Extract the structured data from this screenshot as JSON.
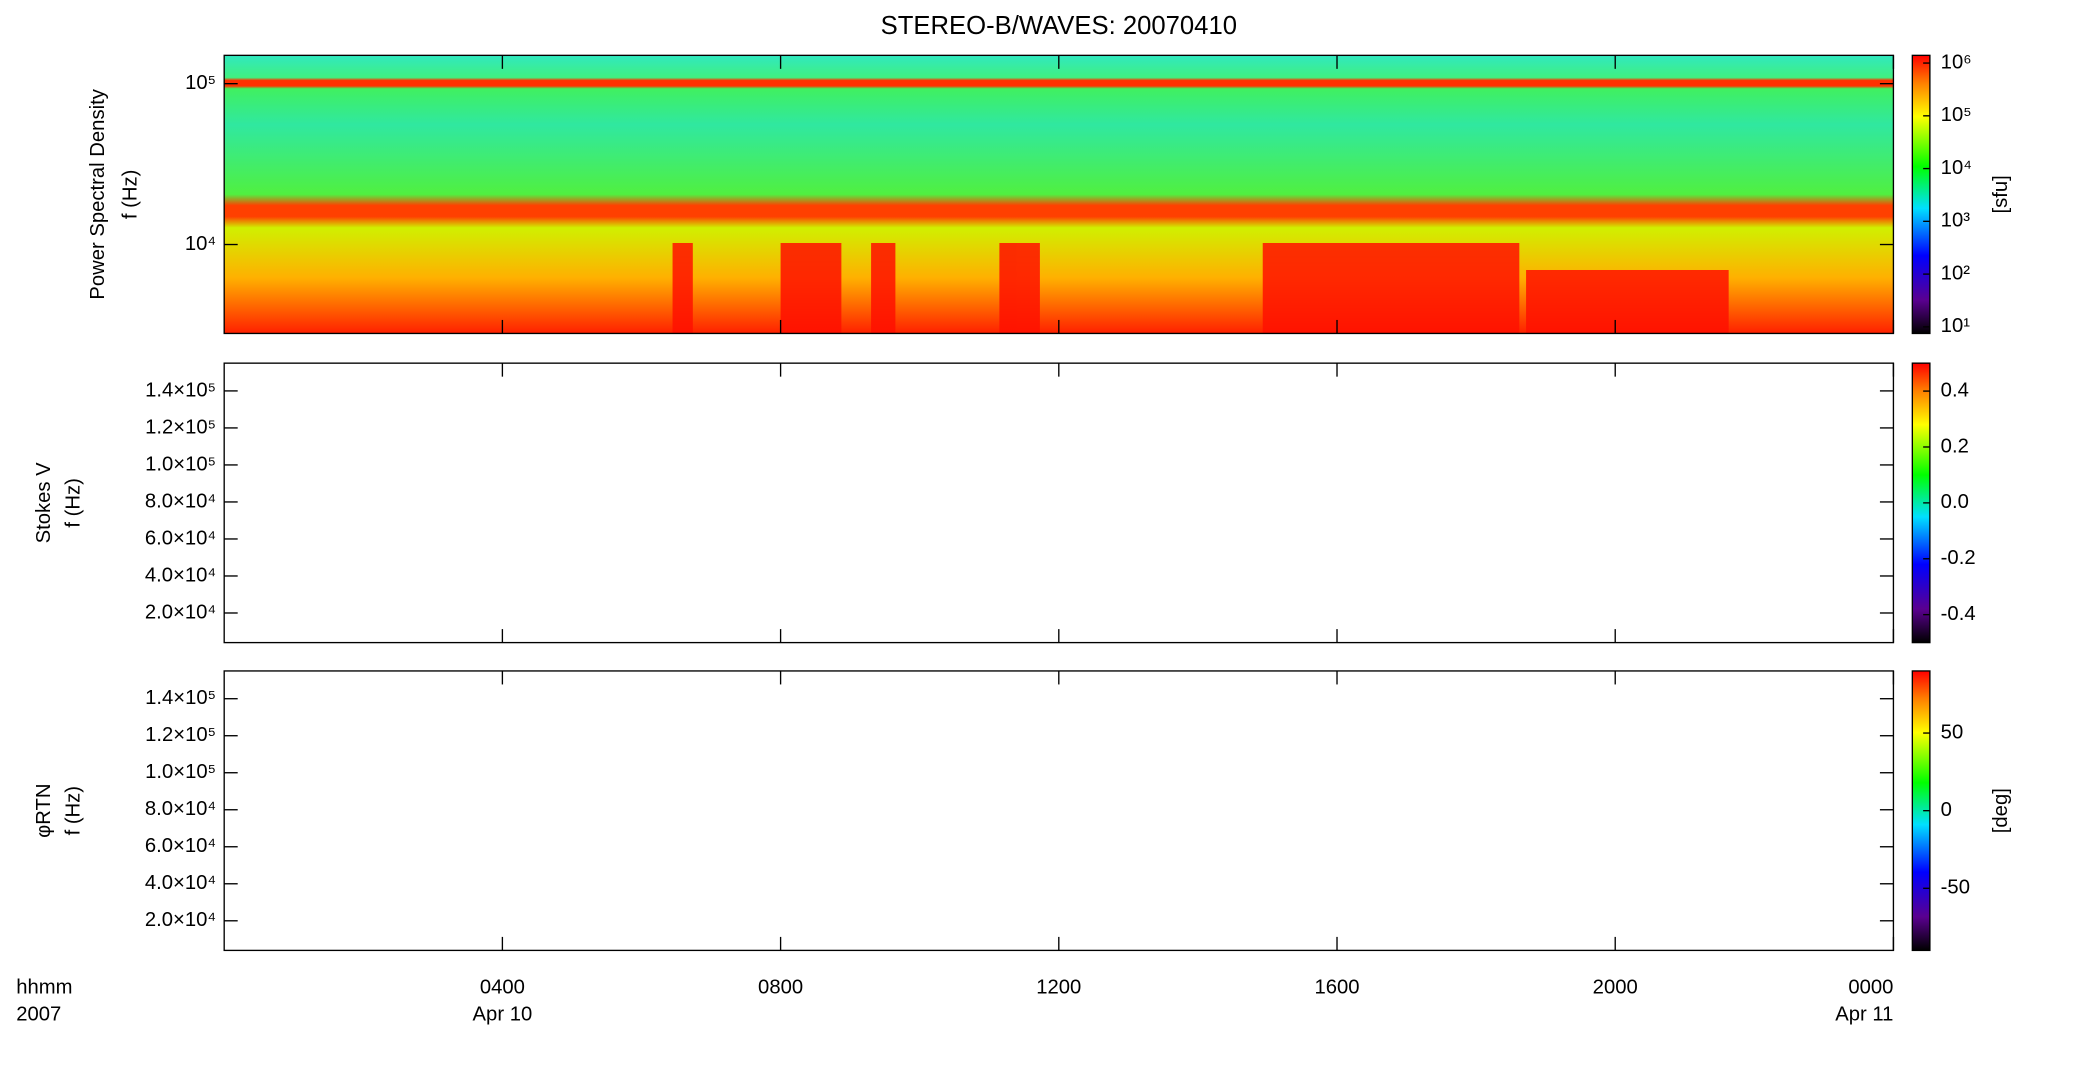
{
  "title": "STEREO-B/WAVES: 20070410",
  "x_axis": {
    "label": "hhmm",
    "label2": "2007",
    "xlim": [
      0,
      24
    ],
    "xticks": [
      {
        "value": 4,
        "label": "0400"
      },
      {
        "value": 8,
        "label": "0800"
      },
      {
        "value": 12,
        "label": "1200"
      },
      {
        "value": 16,
        "label": "1600"
      },
      {
        "value": 20,
        "label": "2000"
      },
      {
        "value": 24,
        "label": "0000"
      }
    ],
    "date_labels": [
      {
        "value": 4,
        "label": "Apr 10"
      },
      {
        "value": 24,
        "label": "Apr 11"
      }
    ]
  },
  "chart_data": [
    {
      "type": "spectrogram",
      "ylabel": "Power Spectral Density",
      "ylabel2": "f (Hz)",
      "log_y": true,
      "ylim": [
        2800,
        150000
      ],
      "yticks": [
        {
          "value": 10000,
          "label": "10⁴"
        },
        {
          "value": 100000,
          "label": "10⁵"
        }
      ],
      "colorbar": {
        "log": true,
        "clim": [
          7.5,
          1400000
        ],
        "label": "[sfu]",
        "ticks": [
          {
            "value": 10,
            "label": "10¹"
          },
          {
            "value": 100,
            "label": "10²"
          },
          {
            "value": 1000,
            "label": "10³"
          },
          {
            "value": 10000,
            "label": "10⁴"
          },
          {
            "value": 100000,
            "label": "10⁵"
          },
          {
            "value": 1000000,
            "label": "10⁶"
          }
        ]
      }
    },
    {
      "type": "spectrogram",
      "ylabel": "Stokes V",
      "ylabel2": "f (Hz)",
      "log_y": false,
      "ylim": [
        4000,
        155000
      ],
      "yticks": [
        {
          "value": 20000,
          "label": "2.0×10⁴"
        },
        {
          "value": 40000,
          "label": "4.0×10⁴"
        },
        {
          "value": 60000,
          "label": "6.0×10⁴"
        },
        {
          "value": 80000,
          "label": "8.0×10⁴"
        },
        {
          "value": 100000,
          "label": "1.0×10⁵"
        },
        {
          "value": 120000,
          "label": "1.2×10⁵"
        },
        {
          "value": 140000,
          "label": "1.4×10⁵"
        }
      ],
      "colorbar": {
        "log": false,
        "clim": [
          -0.5,
          0.5
        ],
        "ticks": [
          -0.4,
          -0.2,
          {
            "value": 0,
            "label": "0.0"
          },
          0.2,
          0.4
        ]
      }
    },
    {
      "type": "spectrogram",
      "ylabel": "φRTN",
      "ylabel2": "f (Hz)",
      "log_y": false,
      "ylim": [
        4000,
        155000
      ],
      "yticks": [
        {
          "value": 20000,
          "label": "2.0×10⁴"
        },
        {
          "value": 40000,
          "label": "4.0×10⁴"
        },
        {
          "value": 60000,
          "label": "6.0×10⁴"
        },
        {
          "value": 80000,
          "label": "8.0×10⁴"
        },
        {
          "value": 100000,
          "label": "1.0×10⁵"
        },
        {
          "value": 120000,
          "label": "1.2×10⁵"
        },
        {
          "value": 140000,
          "label": "1.4×10⁵"
        }
      ],
      "colorbar": {
        "log": false,
        "clim": [
          -90,
          90
        ],
        "label": "[deg]",
        "ticks": [
          -50,
          0,
          50
        ]
      }
    }
  ]
}
